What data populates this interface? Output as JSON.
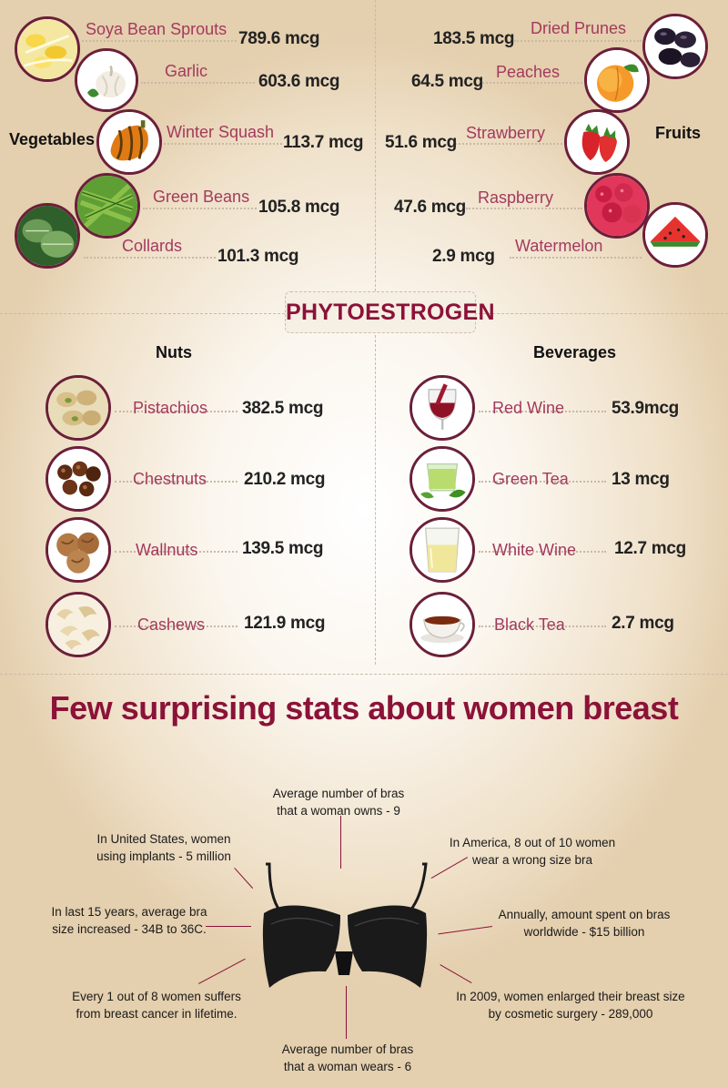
{
  "vegetables": {
    "title": "Vegetables",
    "items": [
      {
        "name": "Soya Bean Sprouts",
        "value": "789.6 mcg"
      },
      {
        "name": "Garlic",
        "value": "603.6 mcg"
      },
      {
        "name": "Winter Squash",
        "value": "113.7 mcg"
      },
      {
        "name": "Green Beans",
        "value": "105.8 mcg"
      },
      {
        "name": "Collards",
        "value": "101.3 mcg"
      }
    ]
  },
  "fruits": {
    "title": "Fruits",
    "items": [
      {
        "name": "Dried Prunes",
        "value": "183.5 mcg"
      },
      {
        "name": "Peaches",
        "value": "64.5 mcg"
      },
      {
        "name": "Strawberry",
        "value": "51.6 mcg"
      },
      {
        "name": "Raspberry",
        "value": "47.6 mcg"
      },
      {
        "name": "Watermelon",
        "value": "2.9 mcg"
      }
    ]
  },
  "banner": "PHYTOESTROGEN",
  "nuts": {
    "title": "Nuts",
    "items": [
      {
        "name": "Pistachios",
        "value": "382.5 mcg"
      },
      {
        "name": "Chestnuts",
        "value": "210.2 mcg"
      },
      {
        "name": "Wallnuts",
        "value": "139.5 mcg"
      },
      {
        "name": "Cashews",
        "value": "121.9 mcg"
      }
    ]
  },
  "beverages": {
    "title": "Beverages",
    "items": [
      {
        "name": "Red Wine",
        "value": "53.9mcg"
      },
      {
        "name": "Green Tea",
        "value": "13 mcg"
      },
      {
        "name": "White Wine",
        "value": "12.7 mcg"
      },
      {
        "name": "Black Tea",
        "value": "2.7 mcg"
      }
    ]
  },
  "stats": {
    "title": "Few surprising stats about women breast",
    "owns": [
      "Average number of bras",
      "that a woman owns - 9"
    ],
    "implants": [
      "In United States, women",
      "using implants - 5 million"
    ],
    "wrong_size": [
      "In America, 8 out of 10 women",
      "wear a wrong size bra"
    ],
    "size_increase": [
      "In last 15 years, average bra",
      "size increased - 34B to 36C."
    ],
    "spent": [
      "Annually, amount spent on bras",
      "worldwide - $15 billion"
    ],
    "cancer": [
      "Every 1 out of 8 women suffers",
      "from breast cancer in lifetime."
    ],
    "enlarged": [
      "In 2009, women enlarged their breast size",
      "by cosmetic surgery - 289,000"
    ],
    "wears": [
      "Average number of bras",
      "that a woman wears - 6"
    ]
  },
  "colors": {
    "accent": "#8b1238",
    "label": "#a33a5e",
    "ring": "#6b1f3a"
  }
}
